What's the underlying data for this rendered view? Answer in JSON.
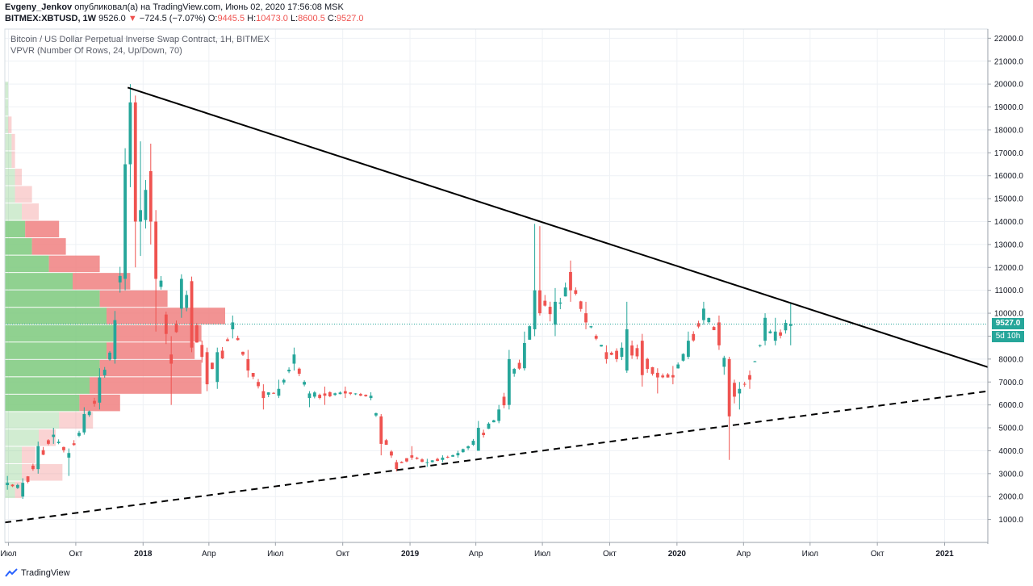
{
  "header": {
    "author": "Evgeny_Jenkov",
    "published": "опубликовал(а) на TradingView.com, Июнь 02, 2020 17:56:08 MSK",
    "symbol": "BITMEX:XBTUSD, 1W",
    "last": "9526.0",
    "change_arrow": "▼",
    "change": "−724.5 (−7.07%)",
    "o_label": "O:",
    "o_value": "9445.5",
    "h_label": "H:",
    "h_value": "10473.0",
    "l_label": "L:",
    "l_value": "8600.5",
    "c_label": "C:",
    "c_value": "9527.0"
  },
  "price_tag": "9527.0",
  "time_tag": "5d 10h",
  "footer": {
    "brand": "TradingView"
  },
  "colors": {
    "up": "#26a69a",
    "down": "#ef5350",
    "vp_up": "#7cc97c",
    "vp_down": "#f08080"
  },
  "chart_data": {
    "type": "candlestick",
    "title": "Bitcoin / US Dollar Perpetual Inverse Swap Contract, 1H, BITMEX",
    "subtitle": "VPVR (Number Of Rows, 24, Up/Down, 70)",
    "x_range": [
      "2017-06-26",
      "2021-03-01"
    ],
    "ylim": [
      0,
      22400
    ],
    "yticks": [
      1000,
      2000,
      3000,
      4000,
      5000,
      6000,
      7000,
      8000,
      9000,
      10000,
      11000,
      12000,
      13000,
      14000,
      15000,
      16000,
      17000,
      18000,
      19000,
      20000,
      21000,
      22000
    ],
    "ytick_labels": [
      "1000.0",
      "2000.0",
      "3000.0",
      "4000.0",
      "5000.0",
      "6000.0",
      "7000.0",
      "8000.0",
      "9000.0",
      "10000.0",
      "11000.0",
      "12000.0",
      "13000.0",
      "14000.0",
      "15000.0",
      "16000.0",
      "17000.0",
      "18000.0",
      "19000.0",
      "20000.0",
      "21000.0",
      "22000.0"
    ],
    "xticks": [
      {
        "date": "2017-07-01",
        "label": "Июл"
      },
      {
        "date": "2017-10-01",
        "label": "Окт"
      },
      {
        "date": "2018-01-01",
        "label": "2018"
      },
      {
        "date": "2018-04-01",
        "label": "Апр"
      },
      {
        "date": "2018-07-01",
        "label": "Июл"
      },
      {
        "date": "2018-10-01",
        "label": "Окт"
      },
      {
        "date": "2019-01-01",
        "label": "2019"
      },
      {
        "date": "2019-04-01",
        "label": "Апр"
      },
      {
        "date": "2019-07-01",
        "label": "Июл"
      },
      {
        "date": "2019-10-01",
        "label": "Окт"
      },
      {
        "date": "2020-01-01",
        "label": "2020"
      },
      {
        "date": "2020-04-01",
        "label": "Апр"
      },
      {
        "date": "2020-07-01",
        "label": "Июл"
      },
      {
        "date": "2020-10-01",
        "label": "Окт"
      },
      {
        "date": "2021-01-01",
        "label": "2021"
      }
    ],
    "last_price": 9527.0,
    "anchors": [
      [
        "2017-06-26",
        2500,
        2600,
        2900,
        2300
      ],
      [
        "2017-07-17",
        2000,
        2600,
        2800,
        1900
      ],
      [
        "2017-08-07",
        3200,
        4200,
        4400,
        3000
      ],
      [
        "2017-08-28",
        4600,
        4700,
        5000,
        4300
      ],
      [
        "2017-09-18",
        3700,
        3900,
        4100,
        2900
      ],
      [
        "2017-10-09",
        4800,
        5600,
        5900,
        4700
      ],
      [
        "2017-10-30",
        6100,
        7200,
        7600,
        5800
      ],
      [
        "2017-11-20",
        8000,
        9700,
        10100,
        7800
      ],
      [
        "2017-12-04",
        11500,
        16500,
        17200,
        11000
      ],
      [
        "2017-12-11",
        16500,
        19200,
        20000,
        15500
      ],
      [
        "2017-12-18",
        19200,
        14000,
        19500,
        12000
      ],
      [
        "2017-12-25",
        14000,
        14500,
        17500,
        12500
      ],
      [
        "2018-01-08",
        16200,
        14000,
        17400,
        13000
      ],
      [
        "2018-01-15",
        14000,
        11500,
        14500,
        9200
      ],
      [
        "2018-02-05",
        8200,
        7800,
        9000,
        6000
      ],
      [
        "2018-02-19",
        10200,
        11500,
        11700,
        9800
      ],
      [
        "2018-03-05",
        11400,
        8500,
        11600,
        8300
      ],
      [
        "2018-03-26",
        8300,
        6900,
        8500,
        6600
      ],
      [
        "2018-04-09",
        7000,
        8300,
        8500,
        6700
      ],
      [
        "2018-04-30",
        9300,
        9600,
        9900,
        8900
      ],
      [
        "2018-05-21",
        8000,
        7500,
        8400,
        7200
      ],
      [
        "2018-06-11",
        6600,
        6300,
        6900,
        5800
      ],
      [
        "2018-07-02",
        6400,
        6700,
        7100,
        6300
      ],
      [
        "2018-07-23",
        7800,
        8200,
        8500,
        7500
      ],
      [
        "2018-08-13",
        6300,
        6500,
        6600,
        5900
      ],
      [
        "2018-09-03",
        6500,
        6400,
        6800,
        6000
      ],
      [
        "2018-10-01",
        6600,
        6500,
        6800,
        6300
      ],
      [
        "2018-11-05",
        6300,
        6400,
        6550,
        6200
      ],
      [
        "2018-11-19",
        5500,
        4300,
        5600,
        3800
      ],
      [
        "2018-12-10",
        3500,
        3200,
        3600,
        3100
      ],
      [
        "2018-12-31",
        3800,
        3700,
        4200,
        3600
      ],
      [
        "2019-01-21",
        3500,
        3500,
        3650,
        3300
      ],
      [
        "2019-02-11",
        3600,
        3700,
        3800,
        3500
      ],
      [
        "2019-03-04",
        3800,
        3900,
        4000,
        3700
      ],
      [
        "2019-04-01",
        4000,
        5000,
        5300,
        4000
      ],
      [
        "2019-04-29",
        5300,
        5800,
        6000,
        5200
      ],
      [
        "2019-05-13",
        6000,
        8000,
        8400,
        5800
      ],
      [
        "2019-06-03",
        7600,
        8700,
        9200,
        7500
      ],
      [
        "2019-06-17",
        9300,
        11000,
        13900,
        9000
      ],
      [
        "2019-06-24",
        11000,
        10000,
        13800,
        9900
      ],
      [
        "2019-07-15",
        9500,
        10500,
        11100,
        9000
      ],
      [
        "2019-08-05",
        11800,
        11000,
        12300,
        10500
      ],
      [
        "2019-08-26",
        10000,
        9600,
        10500,
        9300
      ],
      [
        "2019-09-23",
        8300,
        8000,
        8600,
        7800
      ],
      [
        "2019-10-21",
        7500,
        9300,
        10500,
        7400
      ],
      [
        "2019-11-11",
        8800,
        7300,
        9100,
        6800
      ],
      [
        "2019-12-02",
        7400,
        7200,
        7600,
        6500
      ],
      [
        "2019-12-23",
        7300,
        7200,
        7700,
        6900
      ],
      [
        "2020-01-13",
        8100,
        8800,
        9200,
        8000
      ],
      [
        "2020-02-03",
        9700,
        10200,
        10500,
        9500
      ],
      [
        "2020-02-24",
        9600,
        8600,
        9900,
        8400
      ],
      [
        "2020-03-09",
        8000,
        5500,
        8100,
        3600
      ],
      [
        "2020-03-23",
        6500,
        6700,
        7000,
        5800
      ],
      [
        "2020-04-06",
        7300,
        7100,
        7500,
        6700
      ],
      [
        "2020-04-27",
        8800,
        9800,
        10000,
        8600
      ],
      [
        "2020-05-11",
        8800,
        9200,
        9800,
        8600
      ],
      [
        "2020-06-01",
        9445.5,
        9527,
        10473,
        8600.5
      ]
    ],
    "volume_profile": {
      "price_min": 1900,
      "price_max": 20100,
      "rows": 24,
      "up": [
        0.03,
        0.05,
        0.05,
        0.1,
        0.16,
        0.22,
        0.25,
        0.28,
        0.3,
        0.32,
        0.3,
        0.28,
        0.2,
        0.13,
        0.08,
        0.06,
        0.05,
        0.03,
        0.03,
        0.02,
        0.02,
        0.01,
        0.01,
        0.01
      ],
      "down": [
        0.02,
        0.12,
        0.04,
        0.05,
        0.1,
        0.12,
        0.33,
        0.3,
        0.26,
        0.26,
        0.35,
        0.2,
        0.17,
        0.15,
        0.1,
        0.1,
        0.05,
        0.05,
        0.02,
        0.01,
        0.01,
        0.01,
        0.0,
        0.0
      ]
    },
    "trendlines": [
      {
        "style": "solid",
        "from": [
          "2017-12-11",
          19850
        ],
        "to": [
          "2021-03-01",
          7650
        ]
      },
      {
        "style": "dashed",
        "from": [
          "2017-06-26",
          870
        ],
        "to": [
          "2021-03-01",
          6600
        ]
      }
    ]
  }
}
